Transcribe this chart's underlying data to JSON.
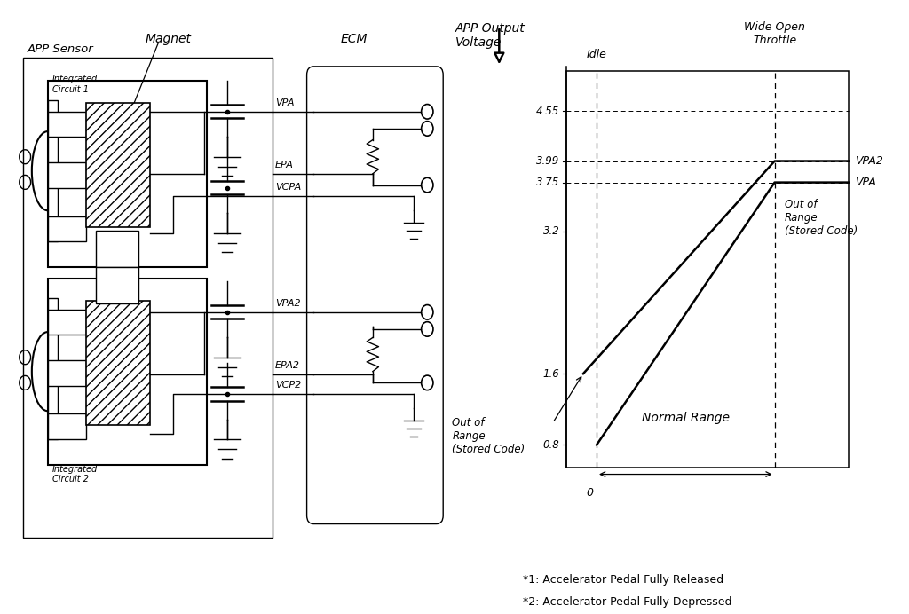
{
  "left_panel": {
    "title_sensor": "APP Sensor",
    "title_magnet": "Magnet",
    "title_ecm": "ECM",
    "ic1_label": "Integrated\nCircuit 1",
    "ic2_label": "Integrated\nCircuit 2",
    "signals": [
      "VPA",
      "EPA",
      "VCPA",
      "VPA2",
      "EPA2",
      "VCP2"
    ]
  },
  "right_panel": {
    "title": "APP Output\nVoltage",
    "idle_label": "Idle",
    "wot_label": "Wide Open\nThrottle",
    "vpa_label": "VPA",
    "vpa2_label": "VPA2",
    "normal_range_label": "Normal Range",
    "out_range_left": "Out of\nRange\n(Stored Code)",
    "out_range_right": "Out of\nRange\n(Stored Code)",
    "zero_label": "0",
    "y_ticks": [
      0.8,
      1.6,
      3.2,
      3.75,
      3.99,
      4.55
    ],
    "note1": "*1: Accelerator Pedal Fully Released",
    "note2": "*2: Accelerator Pedal Fully Depressed"
  }
}
